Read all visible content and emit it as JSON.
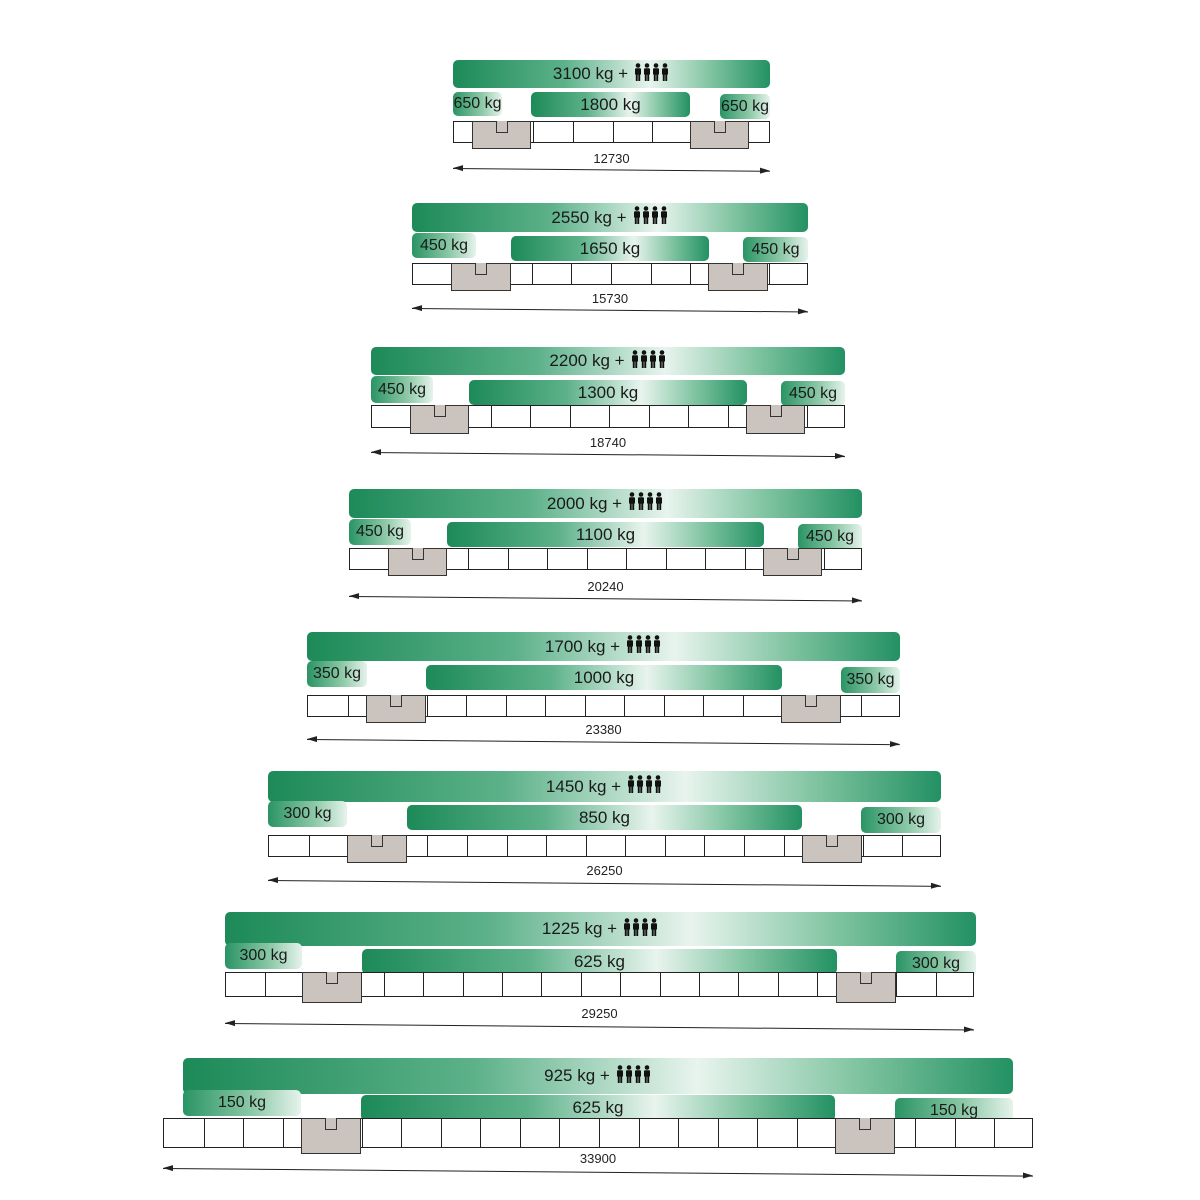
{
  "colors": {
    "green_dark": "#1d8a58",
    "support_fill": "#cbc3bd"
  },
  "people_icon": "four-persons-icon",
  "rows": [
    {
      "total": "3100 kg +",
      "left": "650 kg",
      "middle": "1800 kg",
      "right": "650 kg",
      "length": "12730"
    },
    {
      "total": "2550 kg +",
      "left": "450 kg",
      "middle": "1650 kg",
      "right": "450 kg",
      "length": "15730"
    },
    {
      "total": "2200 kg +",
      "left": "450 kg",
      "middle": "1300 kg",
      "right": "450 kg",
      "length": "18740"
    },
    {
      "total": "2000 kg +",
      "left": "450 kg",
      "middle": "1100 kg",
      "right": "450 kg",
      "length": "20240"
    },
    {
      "total": "1700 kg +",
      "left": "350 kg",
      "middle": "1000 kg",
      "right": "350 kg",
      "length": "23380"
    },
    {
      "total": "1450 kg +",
      "left": "300 kg",
      "middle": "850 kg",
      "right": "300 kg",
      "length": "26250"
    },
    {
      "total": "1225 kg +",
      "left": "300 kg",
      "middle": "625 kg",
      "right": "300 kg",
      "length": "29250"
    },
    {
      "total": "925 kg +",
      "left": "150 kg",
      "middle": "625 kg",
      "right": "150 kg",
      "length": "33900"
    }
  ]
}
